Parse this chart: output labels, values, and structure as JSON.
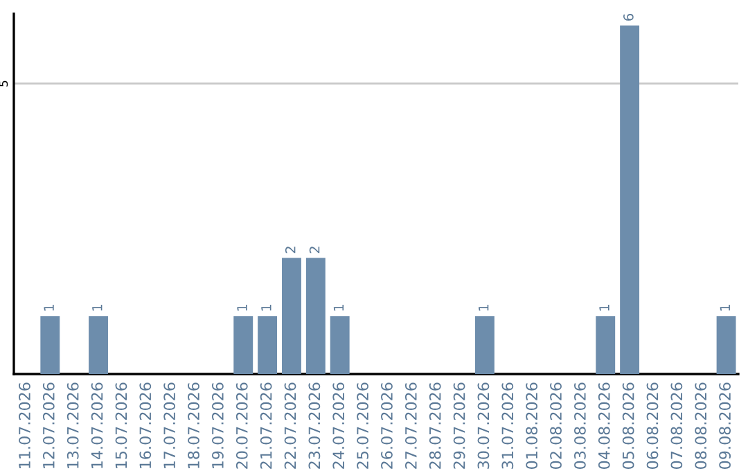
{
  "chart_data": {
    "type": "bar",
    "categories": [
      "11.07.2026",
      "12.07.2026",
      "13.07.2026",
      "14.07.2026",
      "15.07.2026",
      "16.07.2026",
      "17.07.2026",
      "18.07.2026",
      "19.07.2026",
      "20.07.2026",
      "21.07.2026",
      "22.07.2026",
      "23.07.2026",
      "24.07.2026",
      "25.07.2026",
      "26.07.2026",
      "27.07.2026",
      "28.07.2026",
      "29.07.2026",
      "30.07.2026",
      "31.07.2026",
      "01.08.2026",
      "02.08.2026",
      "03.08.2026",
      "04.08.2026",
      "05.08.2026",
      "06.08.2026",
      "07.08.2026",
      "08.08.2026",
      "09.08.2026"
    ],
    "values": [
      0,
      1,
      0,
      1,
      0,
      0,
      0,
      0,
      0,
      1,
      1,
      2,
      2,
      1,
      0,
      0,
      0,
      0,
      0,
      1,
      0,
      0,
      0,
      0,
      1,
      6,
      0,
      0,
      0,
      1
    ],
    "value_labels": [
      null,
      "1",
      null,
      "1",
      null,
      null,
      null,
      null,
      null,
      "1",
      "1",
      "2",
      "2",
      "1",
      null,
      null,
      null,
      null,
      null,
      "1",
      null,
      null,
      null,
      null,
      "1",
      "6",
      null,
      null,
      null,
      "1"
    ],
    "color": "#6d8dac",
    "ylim": [
      0,
      6.2
    ],
    "yticks": [
      5
    ],
    "grid": "y"
  }
}
